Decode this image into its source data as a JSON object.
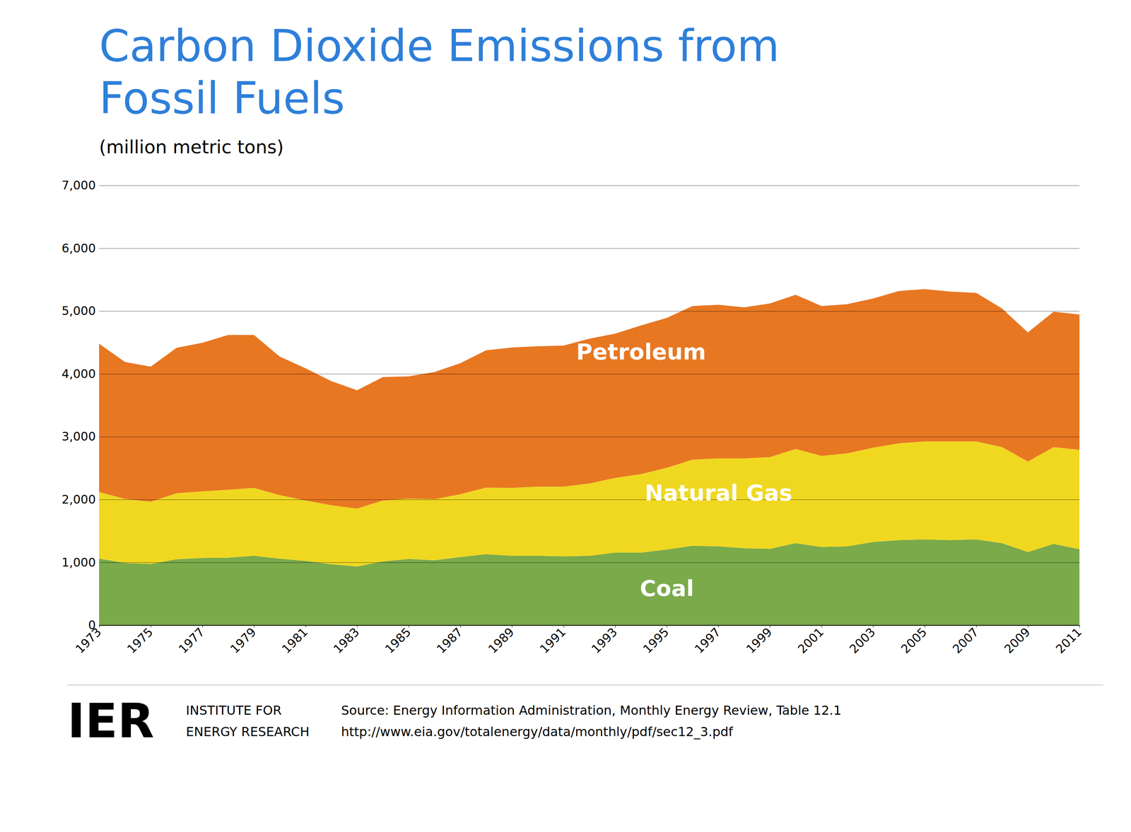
{
  "chart_data": {
    "type": "area",
    "stacked": true,
    "title": "Carbon Dioxide Emissions from\nFossil Fuels",
    "title_color": "#2E7FD9",
    "subtitle": "(million metric tons)",
    "x": [
      1973,
      1974,
      1975,
      1976,
      1977,
      1978,
      1979,
      1980,
      1981,
      1982,
      1983,
      1984,
      1985,
      1986,
      1987,
      1988,
      1989,
      1990,
      1991,
      1992,
      1993,
      1994,
      1995,
      1996,
      1997,
      1998,
      1999,
      2000,
      2001,
      2002,
      2003,
      2004,
      2005,
      2006,
      2007,
      2008,
      2009,
      2010,
      2011
    ],
    "series": [
      {
        "name": "Coal",
        "color": "#7aaa4a",
        "values": [
          1060,
          990,
          975,
          1050,
          1070,
          1075,
          1105,
          1060,
          1025,
          970,
          935,
          1015,
          1055,
          1035,
          1085,
          1130,
          1105,
          1105,
          1095,
          1105,
          1155,
          1155,
          1205,
          1265,
          1255,
          1225,
          1215,
          1305,
          1245,
          1255,
          1325,
          1355,
          1365,
          1355,
          1365,
          1305,
          1165,
          1295,
          1210
        ]
      },
      {
        "name": "Natural Gas",
        "color": "#f0d820",
        "values": [
          1060,
          1020,
          990,
          1050,
          1060,
          1080,
          1080,
          1010,
          960,
          940,
          920,
          970,
          960,
          970,
          1000,
          1060,
          1080,
          1100,
          1110,
          1150,
          1190,
          1250,
          1300,
          1370,
          1400,
          1430,
          1460,
          1500,
          1450,
          1480,
          1500,
          1540,
          1560,
          1570,
          1560,
          1530,
          1440,
          1540,
          1580
        ]
      },
      {
        "name": "Petroleum",
        "color": "#e87722",
        "values": [
          2360,
          2180,
          2150,
          2315,
          2365,
          2465,
          2435,
          2205,
          2105,
          1975,
          1885,
          1965,
          1945,
          2025,
          2085,
          2185,
          2235,
          2235,
          2245,
          2305,
          2295,
          2365,
          2385,
          2445,
          2445,
          2405,
          2445,
          2455,
          2385,
          2375,
          2375,
          2425,
          2425,
          2385,
          2365,
          2205,
          2055,
          2155,
          2155
        ]
      }
    ],
    "xlim": [
      1973,
      2011
    ],
    "xticks": [
      1973,
      1975,
      1977,
      1979,
      1981,
      1983,
      1985,
      1987,
      1989,
      1991,
      1993,
      1995,
      1997,
      1999,
      2001,
      2003,
      2005,
      2007,
      2009,
      2011
    ],
    "ylim": [
      0,
      7000
    ],
    "yticks": [
      0,
      {
        "value": 1000,
        "label": "1,000"
      },
      {
        "value": 2000,
        "label": "2,000"
      },
      {
        "value": 3000,
        "label": "3,000"
      },
      {
        "value": 4000,
        "label": "4,000"
      },
      {
        "value": 5000,
        "label": "5,000"
      },
      {
        "value": 6000,
        "label": "6,000"
      },
      {
        "value": 7000,
        "label": "7,000"
      }
    ],
    "grid": true,
    "annotations": [
      {
        "text": "Petroleum",
        "x": 1994,
        "y": 4350
      },
      {
        "text": "Natural Gas",
        "x": 1997,
        "y": 2100
      },
      {
        "text": "Coal",
        "x": 1995,
        "y": 580
      }
    ],
    "footer_logo": "IER",
    "footer_org": [
      "INSTITUTE FOR",
      "ENERGY RESEARCH"
    ],
    "source": [
      "Source: Energy Information Administration, Monthly Energy Review, Table 12.1",
      "http://www.eia.gov/totalenergy/data/monthly/pdf/sec12_3.pdf"
    ]
  }
}
